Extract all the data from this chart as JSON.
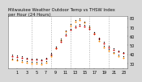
{
  "title": "Milwaukee Weather Outdoor Temp vs THSW Index",
  "background_color": "#d8d8d8",
  "plot_bg_color": "#ffffff",
  "hours": [
    0,
    1,
    2,
    3,
    4,
    5,
    6,
    7,
    8,
    9,
    10,
    11,
    12,
    13,
    14,
    15,
    16,
    17,
    18,
    19,
    20,
    21,
    22,
    23
  ],
  "temp": [
    38,
    37,
    36,
    35,
    34,
    34,
    33,
    35,
    40,
    47,
    54,
    61,
    67,
    70,
    72,
    71,
    68,
    63,
    57,
    52,
    48,
    45,
    43,
    41
  ],
  "thsw": [
    34,
    33,
    32,
    31,
    30,
    30,
    29,
    31,
    38,
    47,
    56,
    65,
    72,
    76,
    78,
    75,
    70,
    63,
    55,
    48,
    44,
    41,
    38,
    36
  ],
  "temp_color": "#cc0000",
  "thsw_color": "#ff8800",
  "black_color": "#000000",
  "grid_color": "#aaaaaa",
  "ylim_min": 25,
  "ylim_max": 82,
  "ytick_vals": [
    30,
    40,
    50,
    60,
    70,
    80
  ],
  "ytick_labels": [
    "30",
    "40",
    "50",
    "60",
    "70",
    "80"
  ],
  "xtick_vals": [
    1,
    3,
    5,
    7,
    9,
    11,
    13,
    15,
    17,
    19,
    21,
    23
  ],
  "dashed_hours": [
    4,
    8,
    12,
    16,
    20
  ],
  "marker_size": 2.0,
  "xlabel_fontsize": 3.5,
  "ylabel_fontsize": 3.5,
  "title_fontsize": 3.8
}
